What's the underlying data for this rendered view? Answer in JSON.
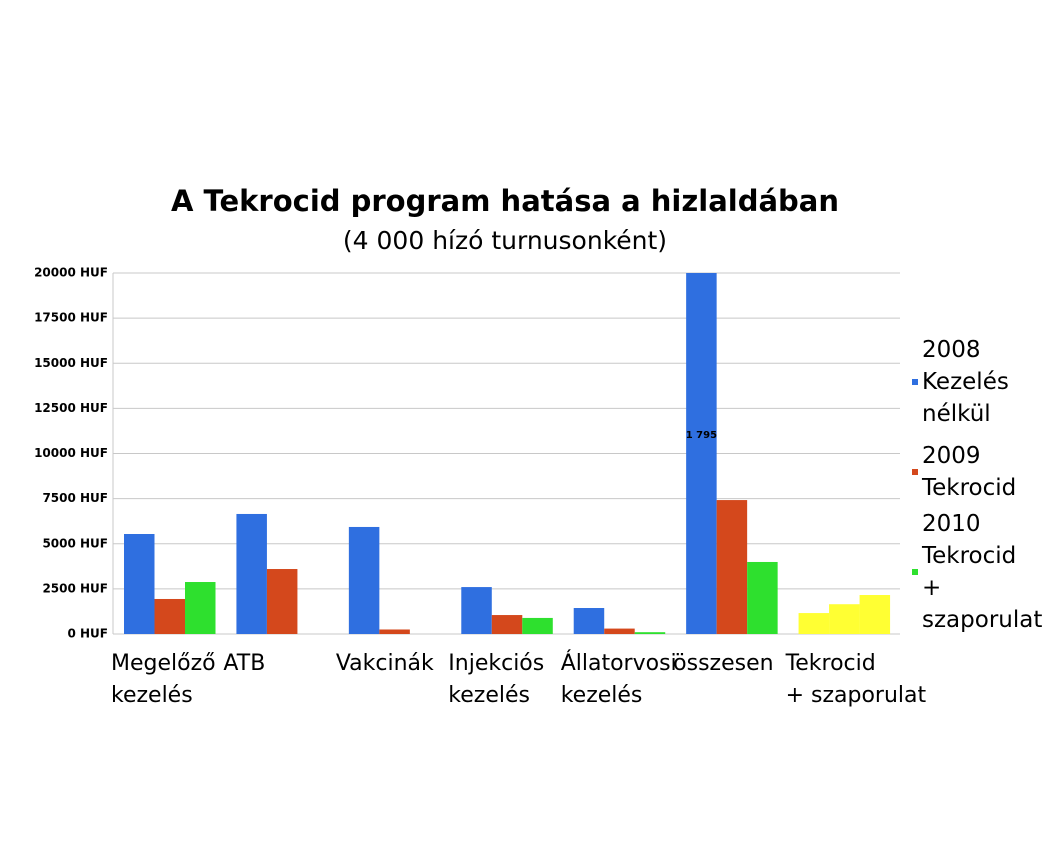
{
  "chart_data": {
    "type": "bar",
    "title": "A Tekrocid program hatása a hizlaldában",
    "subtitle": "(4 000 hízó turnusonként)",
    "categories": [
      "Megelőző\nkezelés",
      "ATB",
      "Vakcinák",
      "Injekciós\nkezelés",
      "Állatorvosi\nkezelés",
      "összesen",
      "Tekrocid\n+ szaporulat"
    ],
    "series": [
      {
        "name": "2008\nKezelés\nnélkül",
        "color": "#2f6fe0",
        "colors": [
          "#2f6fe0",
          "#2f6fe0",
          "#2f6fe0",
          "#2f6fe0",
          "#2f6fe0",
          "#2f6fe0",
          "#ffff33"
        ],
        "values": [
          5540,
          6650,
          5930,
          2600,
          1440,
          20000,
          1160
        ]
      },
      {
        "name": "2009\nTekrocid",
        "color": "#d4481c",
        "colors": [
          "#d4481c",
          "#d4481c",
          "#d4481c",
          "#d4481c",
          "#d4481c",
          "#d4481c",
          "#ffff33"
        ],
        "values": [
          1940,
          3600,
          250,
          1050,
          300,
          7420,
          1650
        ]
      },
      {
        "name": "2010\nTekrocid\n+\nszaporulat",
        "color": "#2ee02e",
        "colors": [
          "#2ee02e",
          "#2ee02e",
          "#2ee02e",
          "#2ee02e",
          "#2ee02e",
          "#2ee02e",
          "#ffff33"
        ],
        "values": [
          2880,
          null,
          null,
          890,
          100,
          3990,
          2160
        ]
      }
    ],
    "annotation": "1 795",
    "ylim": [
      0,
      20000
    ],
    "yticks": [
      {
        "value": 0,
        "label": "0 HUF"
      },
      {
        "value": 2500,
        "label": "2500 HUF"
      },
      {
        "value": 5000,
        "label": "5000 HUF"
      },
      {
        "value": 7500,
        "label": "7500 HUF"
      },
      {
        "value": 10000,
        "label": "10000 HUF"
      },
      {
        "value": 12500,
        "label": "12500 HUF"
      },
      {
        "value": 15000,
        "label": "15000 HUF"
      },
      {
        "value": 17500,
        "label": "17500 HUF"
      },
      {
        "value": 20000,
        "label": "20000 HUF"
      }
    ],
    "grid": true,
    "legend": "right"
  }
}
